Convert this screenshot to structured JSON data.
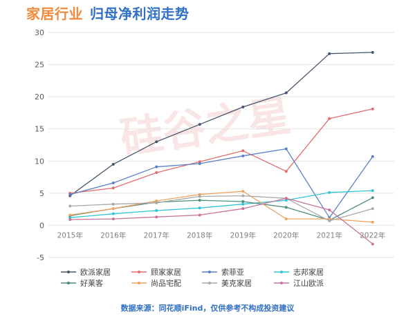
{
  "header": {
    "title_part1": "家居行业",
    "title_part2": "归母净利润走势"
  },
  "source_note": "数据来源：同花顺iFind，仅供参考不构成投资建议",
  "watermark": "硅谷之星",
  "chart_data": {
    "type": "line",
    "title": "家居行业 归母净利润走势",
    "categories": [
      "2015年",
      "2016年",
      "2017年",
      "2018年",
      "2019年",
      "2020年",
      "2021年",
      "2022年"
    ],
    "ylim": [
      -5,
      30
    ],
    "yticks": [
      -5,
      0,
      5,
      10,
      15,
      20,
      25,
      30
    ],
    "grid": "horizontal",
    "legend_position": "bottom",
    "series": [
      {
        "name": "欧派家居",
        "color": "#44546a",
        "values": [
          4.6,
          9.5,
          13.0,
          15.7,
          18.4,
          20.6,
          26.7,
          26.9
        ]
      },
      {
        "name": "顾家家居",
        "color": "#e36c6c",
        "values": [
          5.0,
          5.8,
          8.2,
          9.9,
          11.6,
          8.4,
          16.6,
          18.1
        ]
      },
      {
        "name": "索菲亚",
        "color": "#5b7fc7",
        "values": [
          4.8,
          6.6,
          9.1,
          9.6,
          10.8,
          11.9,
          1.2,
          10.7
        ]
      },
      {
        "name": "志邦家居",
        "color": "#2fc5d6",
        "values": [
          1.2,
          1.8,
          2.3,
          2.7,
          3.3,
          3.9,
          5.1,
          5.4
        ]
      },
      {
        "name": "好莱客",
        "color": "#4a8c80",
        "values": [
          1.5,
          2.6,
          3.6,
          3.9,
          3.7,
          2.8,
          0.8,
          4.3
        ]
      },
      {
        "name": "尚品宅配",
        "color": "#f0a35e",
        "values": [
          1.6,
          2.6,
          3.8,
          4.8,
          5.3,
          1.0,
          1.0,
          0.5
        ]
      },
      {
        "name": "美克家居",
        "color": "#a8a8a8",
        "values": [
          3.0,
          3.3,
          3.5,
          4.5,
          4.6,
          4.2,
          0.7,
          2.6
        ]
      },
      {
        "name": "江山欧派",
        "color": "#c9729b",
        "values": [
          0.9,
          1.0,
          1.3,
          1.6,
          2.6,
          4.2,
          2.4,
          -2.9
        ]
      }
    ]
  }
}
